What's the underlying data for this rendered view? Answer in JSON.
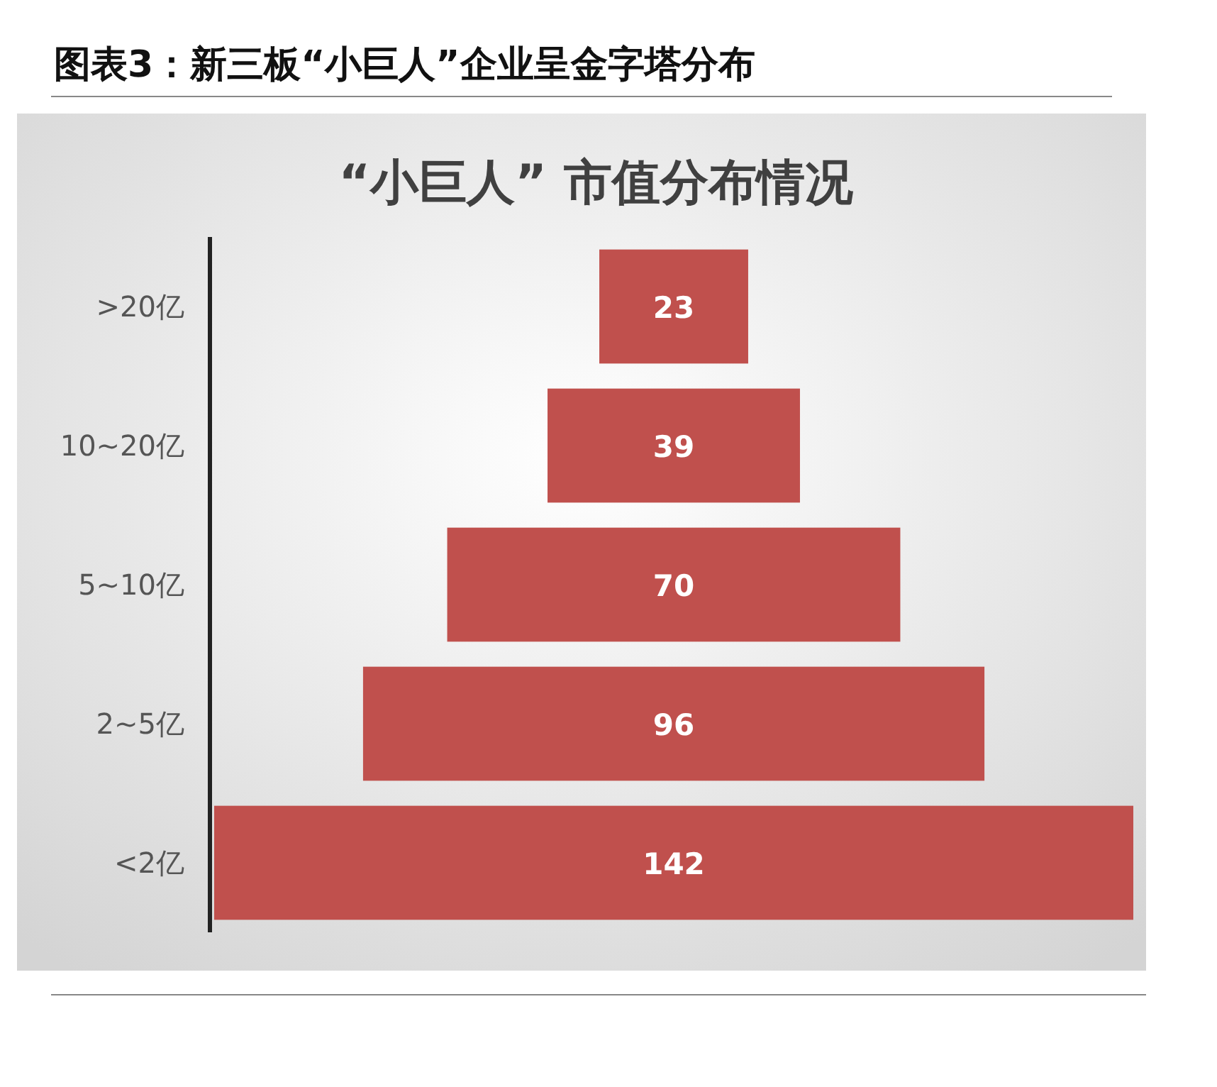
{
  "chart_data": {
    "type": "other",
    "title": "图表3：新三板“小巨人”企业呈金字塔分布",
    "subtitle": "“小巨人” 市值分布情况",
    "categories": [
      ">20亿",
      "10~20亿",
      "5~10亿",
      "2~5亿",
      "<2亿"
    ],
    "values": [
      23,
      39,
      70,
      96,
      142
    ],
    "color": "#c0504d",
    "data_labels": true
  }
}
